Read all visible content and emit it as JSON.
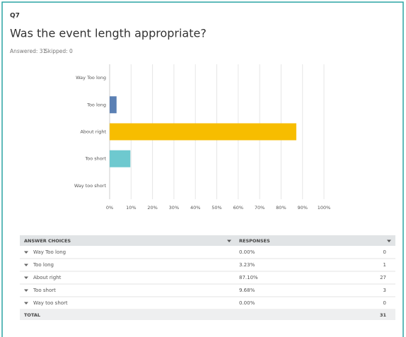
{
  "header": {
    "question": "Q7",
    "title": "Was the event length appropriate?",
    "answered": "Answered: 31",
    "skipped": "Skipped: 0"
  },
  "chart_data": {
    "type": "bar",
    "orientation": "horizontal",
    "categories": [
      "Way Too long",
      "Too long",
      "About right",
      "Too short",
      "Way too short"
    ],
    "values": [
      0,
      3.23,
      87.1,
      9.68,
      0
    ],
    "colors": [
      "#5b80b4",
      "#5b80b4",
      "#f7bd00",
      "#6ec9cf",
      "#6ec9cf"
    ],
    "xlim": [
      0,
      100
    ],
    "xticks": [
      {
        "value": 0,
        "label": "0%"
      },
      {
        "value": 10,
        "label": "10%"
      },
      {
        "value": 20,
        "label": "20%"
      },
      {
        "value": 30,
        "label": "30%"
      },
      {
        "value": 40,
        "label": "40%"
      },
      {
        "value": 50,
        "label": "50%"
      },
      {
        "value": 60,
        "label": "60%"
      },
      {
        "value": 70,
        "label": "70%"
      },
      {
        "value": 80,
        "label": "80%"
      },
      {
        "value": 90,
        "label": "90%"
      },
      {
        "value": 100,
        "label": "100%"
      }
    ],
    "grid": true
  },
  "table": {
    "headers": [
      "ANSWER CHOICES",
      "RESPONSES"
    ],
    "rows": [
      [
        "Way Too long",
        "0.00%",
        0
      ],
      [
        "Too long",
        "3.23%",
        1
      ],
      [
        "About right",
        "87.10%",
        27
      ],
      [
        "Too short",
        "9.68%",
        3
      ],
      [
        "Way too short",
        "0.00%",
        0
      ]
    ],
    "total": [
      "TOTAL",
      31
    ]
  }
}
